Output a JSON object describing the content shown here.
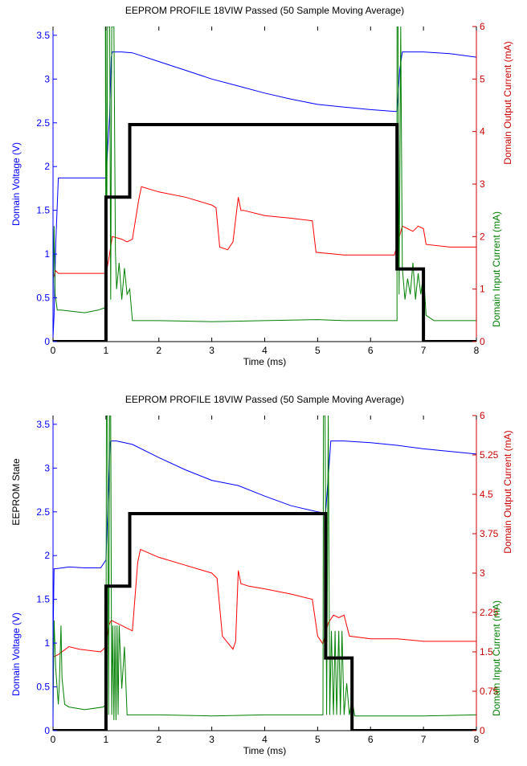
{
  "colors": {
    "voltage": "#0000ff",
    "output_current": "#ff0000",
    "input_current": "#008000",
    "state": "#000000",
    "left_axis_text": "#0000ff",
    "right_axis_text": "#cc0000"
  },
  "chart_data": [
    {
      "type": "line",
      "title": "EEPROM PROFILE 18VIW Passed (50 Sample Moving Average)",
      "xlabel": "Time (ms)",
      "ylabel_left": "Domain Voltage (V)",
      "ylabel_left_extra": "",
      "ylabel_right_outer": "Domain Output Current (mA)",
      "ylabel_right_inner": "Domain Input Current (mA)",
      "xlim": [
        0,
        8
      ],
      "ylim_left": [
        0,
        3.6
      ],
      "ylim_right": [
        0,
        6
      ],
      "x_ticks": [
        0,
        1,
        2,
        3,
        4,
        5,
        6,
        7,
        8
      ],
      "x_tick_labels": [
        "0",
        "1",
        "2",
        "3",
        "4",
        "5",
        "6",
        "7",
        "8"
      ],
      "y_left_ticks": [
        0,
        0.5,
        1,
        1.5,
        2,
        2.5,
        3,
        3.5
      ],
      "y_left_tick_labels": [
        "0",
        "0.5",
        "1",
        "1.5",
        "2",
        "2.5",
        "3",
        "3.5"
      ],
      "y_right_ticks": [
        0,
        1,
        2,
        3,
        4,
        5,
        6
      ],
      "y_right_tick_labels": [
        "0",
        "1",
        "2",
        "3",
        "4",
        "5",
        "6"
      ],
      "grid": false,
      "series": [
        {
          "key": "voltage",
          "axis": "left",
          "width": 1,
          "x": [
            0,
            0.02,
            0.05,
            0.1,
            1.0,
            1.07,
            1.1,
            1.12,
            1.3,
            1.5,
            2,
            2.5,
            3,
            3.5,
            4,
            4.5,
            5,
            5.5,
            6,
            6.45,
            6.5,
            6.55,
            6.6,
            7,
            7.5,
            8
          ],
          "y": [
            0.05,
            0.3,
            1.1,
            1.87,
            1.87,
            2.6,
            3.25,
            3.31,
            3.31,
            3.3,
            3.2,
            3.1,
            3.0,
            2.92,
            2.84,
            2.77,
            2.71,
            2.68,
            2.65,
            2.63,
            2.63,
            3.1,
            3.31,
            3.31,
            3.29,
            3.25
          ]
        },
        {
          "key": "output_current",
          "axis": "right",
          "width": 1,
          "x": [
            0,
            0.05,
            0.1,
            1.0,
            1.05,
            1.12,
            1.3,
            1.4,
            1.5,
            1.62,
            1.67,
            2,
            2.5,
            3,
            3.08,
            3.15,
            3.3,
            3.4,
            3.5,
            3.55,
            3.6,
            4,
            4.5,
            4.9,
            4.97,
            5.5,
            6,
            6.45,
            6.6,
            6.7,
            6.8,
            6.9,
            7.0,
            7.05,
            7.5,
            8
          ],
          "y": [
            1.2,
            1.35,
            1.3,
            1.3,
            1.55,
            2.0,
            1.95,
            1.9,
            1.95,
            2.7,
            2.95,
            2.85,
            2.75,
            2.6,
            2.55,
            1.8,
            1.75,
            1.9,
            2.75,
            2.5,
            2.5,
            2.4,
            2.35,
            2.3,
            1.7,
            1.65,
            1.65,
            1.65,
            2.2,
            2.15,
            2.1,
            2.2,
            2.15,
            1.85,
            1.8,
            1.8
          ]
        },
        {
          "key": "input_current",
          "axis": "right",
          "width": 1,
          "x": [
            0,
            0.02,
            0.04,
            0.08,
            0.15,
            0.6,
            0.85,
            1.0,
            0.99,
            1.0,
            1.01,
            1.03,
            1.05,
            1.07,
            1.09,
            1.11,
            1.13,
            1.15,
            1.18,
            1.2,
            1.25,
            1.3,
            1.35,
            1.4,
            1.45,
            1.5,
            2,
            3,
            4,
            5,
            5.5,
            6,
            6.5,
            6.5,
            6.52,
            6.54,
            6.57,
            6.6,
            6.65,
            6.7,
            6.75,
            6.8,
            6.85,
            6.9,
            6.95,
            7.0,
            7.05,
            7.2,
            7.5,
            8
          ],
          "y": [
            0.7,
            2.2,
            0.9,
            0.6,
            0.6,
            0.55,
            0.6,
            0.65,
            6.0,
            6.0,
            0.8,
            6.0,
            6.0,
            6.0,
            0.8,
            6.0,
            6.0,
            6.0,
            1.7,
            1.0,
            1.5,
            0.8,
            1.4,
            0.9,
            1.0,
            0.4,
            0.4,
            0.38,
            0.4,
            0.42,
            0.4,
            0.4,
            0.4,
            6.0,
            6.0,
            0.9,
            6.0,
            1.4,
            0.8,
            1.2,
            0.9,
            1.5,
            0.8,
            1.3,
            0.9,
            1.3,
            0.5,
            0.4,
            0.4,
            0.4
          ]
        },
        {
          "key": "state",
          "axis": "left",
          "width": 4,
          "x": [
            0,
            1,
            1,
            1.45,
            1.45,
            6.5,
            6.5,
            7.0,
            7.0,
            8
          ],
          "y": [
            0,
            0,
            1.65,
            1.65,
            2.48,
            2.48,
            0.83,
            0.83,
            0,
            0
          ]
        }
      ]
    },
    {
      "type": "line",
      "title": "EEPROM PROFILE 18VIW Passed (50 Sample Moving Average)",
      "xlabel": "Time (ms)",
      "ylabel_left": "Domain Voltage (V)",
      "ylabel_left_extra": "EEPROM State",
      "ylabel_right_outer": "Domain Output Current (mA)",
      "ylabel_right_inner": "Domain Input Current (mA)",
      "xlim": [
        0,
        8
      ],
      "ylim_left": [
        0,
        3.6
      ],
      "ylim_right": [
        0,
        6
      ],
      "x_ticks": [
        0,
        1,
        2,
        3,
        4,
        5,
        6,
        7,
        8
      ],
      "x_tick_labels": [
        "0",
        "1",
        "2",
        "3",
        "4",
        "5",
        "6",
        "7",
        "8"
      ],
      "y_left_ticks": [
        0,
        0.5,
        1,
        1.5,
        2,
        2.5,
        3,
        3.5
      ],
      "y_left_tick_labels": [
        "0",
        "0.5",
        "1",
        "1.5",
        "2",
        "2.5",
        "3",
        "3.5"
      ],
      "y_right_ticks": [
        0,
        0.75,
        1.5,
        2.25,
        3,
        3.75,
        4.5,
        5.25,
        6
      ],
      "y_right_tick_labels": [
        "0",
        "0.75",
        "1.5",
        "2.25",
        "3",
        "3.75",
        "4.5",
        "5.25",
        "6"
      ],
      "grid": false,
      "series": [
        {
          "key": "voltage",
          "axis": "left",
          "width": 1,
          "x": [
            0,
            0.02,
            0.05,
            0.3,
            0.6,
            0.9,
            1.0,
            1.05,
            1.08,
            1.1,
            1.2,
            1.5,
            2,
            2.5,
            3,
            3.5,
            4,
            4.5,
            5,
            5.1,
            5.15,
            5.2,
            5.25,
            5.5,
            6,
            6.5,
            7,
            7.5,
            8
          ],
          "y": [
            1.0,
            1.85,
            1.85,
            1.87,
            1.86,
            1.86,
            1.95,
            2.8,
            3.3,
            3.31,
            3.31,
            3.27,
            3.12,
            2.98,
            2.86,
            2.8,
            2.68,
            2.57,
            2.5,
            2.49,
            2.49,
            2.9,
            3.31,
            3.31,
            3.29,
            3.26,
            3.22,
            3.19,
            3.16
          ]
        },
        {
          "key": "output_current",
          "axis": "right",
          "width": 1,
          "x": [
            0,
            0.1,
            0.3,
            0.5,
            0.9,
            1.0,
            1.05,
            1.1,
            1.2,
            1.3,
            1.4,
            1.5,
            1.6,
            1.65,
            2,
            2.5,
            3,
            3.1,
            3.2,
            3.4,
            3.45,
            3.5,
            3.55,
            3.7,
            4,
            4.5,
            4.9,
            5.0,
            5.1,
            5.2,
            5.3,
            5.4,
            5.5,
            5.6,
            6,
            6.5,
            7,
            7.5,
            8
          ],
          "y": [
            1.4,
            1.45,
            1.6,
            1.55,
            1.5,
            1.6,
            2.0,
            2.1,
            2.05,
            2.0,
            1.95,
            1.9,
            3.2,
            3.45,
            3.3,
            3.15,
            3.0,
            2.9,
            1.8,
            1.55,
            1.7,
            3.05,
            2.8,
            2.75,
            2.7,
            2.6,
            2.5,
            1.8,
            1.65,
            2.05,
            2.2,
            2.15,
            2.2,
            1.8,
            1.75,
            1.75,
            1.7,
            1.7,
            1.7
          ]
        },
        {
          "key": "input_current",
          "axis": "right",
          "width": 1,
          "x": [
            0,
            0.02,
            0.05,
            0.1,
            0.12,
            0.15,
            0.17,
            0.2,
            0.22,
            0.3,
            0.6,
            0.95,
            1.0,
            1.01,
            1.03,
            1.05,
            1.07,
            1.09,
            1.11,
            1.13,
            1.15,
            1.17,
            1.19,
            1.21,
            1.23,
            1.25,
            1.3,
            1.35,
            1.4,
            1.45,
            1.5,
            2,
            3,
            4,
            5,
            5.1,
            5.11,
            5.14,
            5.17,
            5.2,
            5.23,
            5.26,
            5.3,
            5.33,
            5.36,
            5.4,
            5.43,
            5.46,
            5.5,
            5.55,
            5.6,
            5.65,
            5.7,
            6,
            7,
            8
          ],
          "y": [
            0.2,
            2.1,
            1.2,
            0.5,
            0.9,
            2.0,
            1.0,
            0.7,
            0.5,
            0.45,
            0.4,
            0.45,
            0.5,
            6.0,
            6.0,
            0.3,
            6.0,
            6.0,
            0.3,
            2.0,
            0.2,
            2.0,
            0.2,
            2.0,
            0.3,
            2.0,
            0.8,
            1.6,
            0.3,
            0.3,
            0.3,
            0.3,
            0.28,
            0.3,
            0.3,
            0.3,
            6.0,
            6.0,
            0.3,
            6.0,
            0.3,
            1.9,
            0.3,
            1.9,
            0.3,
            1.9,
            0.3,
            1.9,
            0.3,
            0.9,
            0.3,
            0.6,
            0.28,
            0.28,
            0.28,
            0.3
          ]
        },
        {
          "key": "state",
          "axis": "left",
          "width": 4,
          "x": [
            0,
            1,
            1,
            1.45,
            1.45,
            5.15,
            5.15,
            5.65,
            5.65,
            8
          ],
          "y": [
            0,
            0,
            1.65,
            1.65,
            2.48,
            2.48,
            0.83,
            0.83,
            0,
            0
          ]
        }
      ]
    }
  ]
}
